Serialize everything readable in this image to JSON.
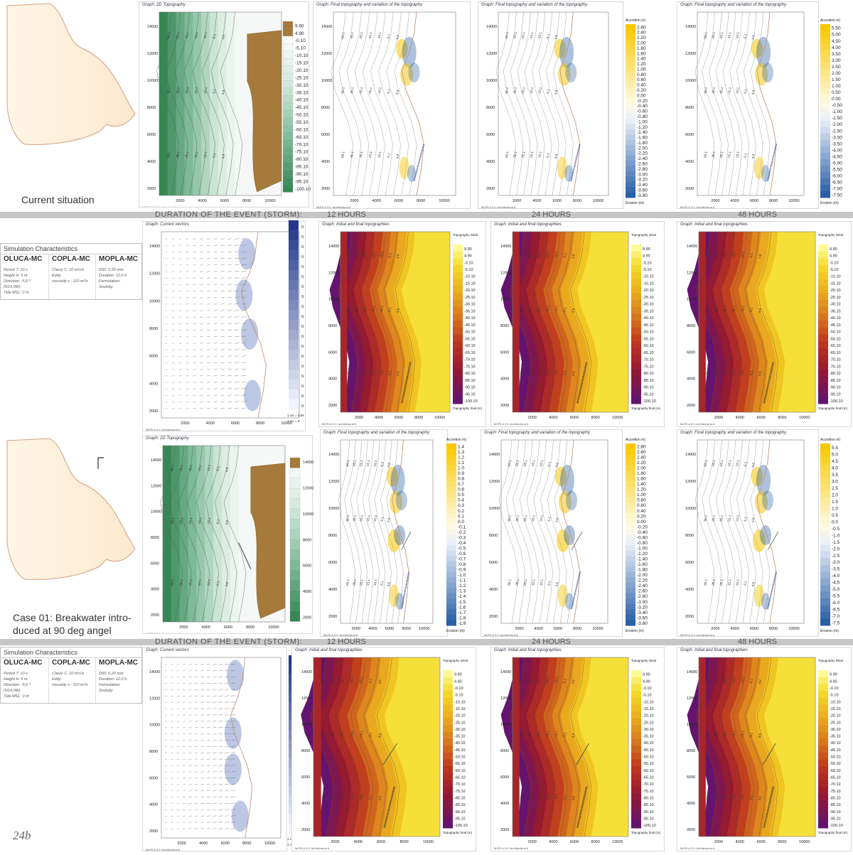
{
  "captions": {
    "current": "Current situation",
    "case01_line1": "Case 01: Breakwater intro-",
    "case01_line2": "duced at 90 deg angel",
    "page_number": "24b"
  },
  "duration": {
    "label": "DURATION OF THE EVENT (STORM):",
    "h12": "12 HOURS",
    "h24": "24 HOURS",
    "h48": "48 HOURS"
  },
  "simulation": {
    "title": "Simulation Characteristics",
    "oluca": {
      "name": "OLUCA-MC",
      "lines": [
        "Period T: 10 s",
        "Height H: 5 m",
        "Direction: -5,6 º (N14,0W)",
        "Tide MSL: 0 m"
      ]
    },
    "copla": {
      "name": "COPLA-MC",
      "lines": [
        "Chezy C: 10 m½/s",
        "Eddy",
        "viscosity  ν : 110 m²/s"
      ]
    },
    "mopla": {
      "name": "MOPLA-MC",
      "lines": [
        "D50: 0.20 mm",
        "Duration: 12.0 h",
        "Formulation:",
        "Soulsby"
      ]
    }
  },
  "graph_titles": {
    "topo2d": "Graph: 2D Topography",
    "final_var": "Graph: Final topography and variation of the topography",
    "current_vectors": "Graph: Current vectors",
    "initial_final": "Graph: Initial and final topographies"
  },
  "footer_label": "MOPLA 3.0: Architectural A",
  "x_ticks": [
    "2000",
    "4000",
    "6000",
    "8000",
    "10000"
  ],
  "y_ticks": [
    "14000",
    "12000",
    "10000",
    "8000",
    "6000",
    "4000",
    "2000"
  ],
  "contour_labels": [
    "-60.1",
    "-35.1",
    "-25.1",
    "-15.1",
    "-10.1",
    "-5.1",
    "4.9"
  ],
  "colorbars": {
    "topo_values": [
      "9.90",
      "4.90",
      "-0.10",
      "-5.10",
      "-10.10",
      "-15.10",
      "-20.10",
      "-25.10",
      "-30.10",
      "-35.10",
      "-40.10",
      "-45.10",
      "-50.10",
      "-55.10",
      "-60.10",
      "-65.10",
      "-70.10",
      "-75.10",
      "-80.10",
      "-85.10",
      "-90.10",
      "-95.10",
      "-100.10"
    ],
    "var_24h_row1": [
      "2.60",
      "2.40",
      "2.20",
      "2.00",
      "1.80",
      "1.60",
      "1.40",
      "1.20",
      "1.00",
      "0.80",
      "0.60",
      "0.40",
      "0.20",
      "0.00",
      "-0.20",
      "-0.40",
      "-0.60",
      "-0.80",
      "-1.00",
      "-1.20",
      "-1.40",
      "-1.60",
      "-1.80",
      "-2.00",
      "-2.20",
      "-2.40",
      "-2.60",
      "-2.80",
      "-3.00",
      "-3.20",
      "-3.40",
      "-3.60",
      "-3.80"
    ],
    "var_48h_row1": [
      "5.50",
      "5.00",
      "4.50",
      "4.00",
      "3.50",
      "3.00",
      "2.50",
      "2.00",
      "1.50",
      "1.00",
      "0.50",
      "0.00",
      "-0.50",
      "-1.00",
      "-1.50",
      "-2.00",
      "-2.50",
      "-3.00",
      "-3.50",
      "-4.00",
      "-4.50",
      "-5.00",
      "-5.50",
      "-6.00",
      "-6.50",
      "-7.00",
      "-7.50"
    ],
    "var_12h_row3": [
      "1.4",
      "1.3",
      "1.2",
      "1.1",
      "1.0",
      "0.9",
      "0.8",
      "0.7",
      "0.6",
      "0.5",
      "0.4",
      "0.3",
      "0.2",
      "0.1",
      "0.0",
      "-0.1",
      "-0.2",
      "-0.3",
      "-0.4",
      "-0.5",
      "-0.6",
      "-0.7",
      "-0.8",
      "-0.9",
      "-1.0",
      "-1.1",
      "-1.2",
      "-1.3",
      "-1.4",
      "-1.5",
      "-1.6",
      "-1.7",
      "-1.8",
      "-1.9"
    ],
    "var_24h_row3": [
      "2.80",
      "2.60",
      "2.40",
      "2.20",
      "2.00",
      "1.80",
      "1.60",
      "1.40",
      "1.20",
      "1.00",
      "0.80",
      "0.60",
      "0.40",
      "0.20",
      "0.00",
      "-0.20",
      "-0.40",
      "-0.60",
      "-0.80",
      "-1.00",
      "-1.20",
      "-1.40",
      "-1.60",
      "-1.80",
      "-2.00",
      "-2.20",
      "-2.40",
      "-2.60",
      "-2.80",
      "-3.00",
      "-3.20",
      "-3.40",
      "-3.60",
      "-3.80"
    ],
    "var_48h_row3": [
      "5.5",
      "5.0",
      "4.5",
      "4.0",
      "3.5",
      "3.0",
      "2.5",
      "2.0",
      "1.5",
      "1.0",
      "0.5",
      "0.0",
      "-0.5",
      "-1.0",
      "-1.5",
      "-2.0",
      "-2.5",
      "-3.0",
      "-3.5",
      "-4.0",
      "-4.5",
      "-5.0",
      "-5.5",
      "-6.0",
      "-6.5",
      "-7.0",
      "-7.5"
    ],
    "vec_values": [
      "0.",
      "0.",
      "0.",
      "0.",
      "0.",
      "0.",
      "0.",
      "0.",
      "0.",
      "0.",
      "0.",
      "0.",
      "0.",
      "0.",
      "0.",
      "0.",
      "0.",
      "0.",
      "0."
    ],
    "accretion": "Accretion m)",
    "erosion": "Erosion (m)",
    "topo_initial": "Topography initial",
    "topo_final": "Topography final (m)",
    "scale": "1 cm = 0.09",
    "scale2": "1 cm = 0"
  },
  "colors": {
    "band": "#c6c6c6",
    "sea_deep": "#3f8f5a",
    "land": "#a57a3a",
    "accretion": "#f5c400",
    "erosion": "#2f63a8"
  }
}
